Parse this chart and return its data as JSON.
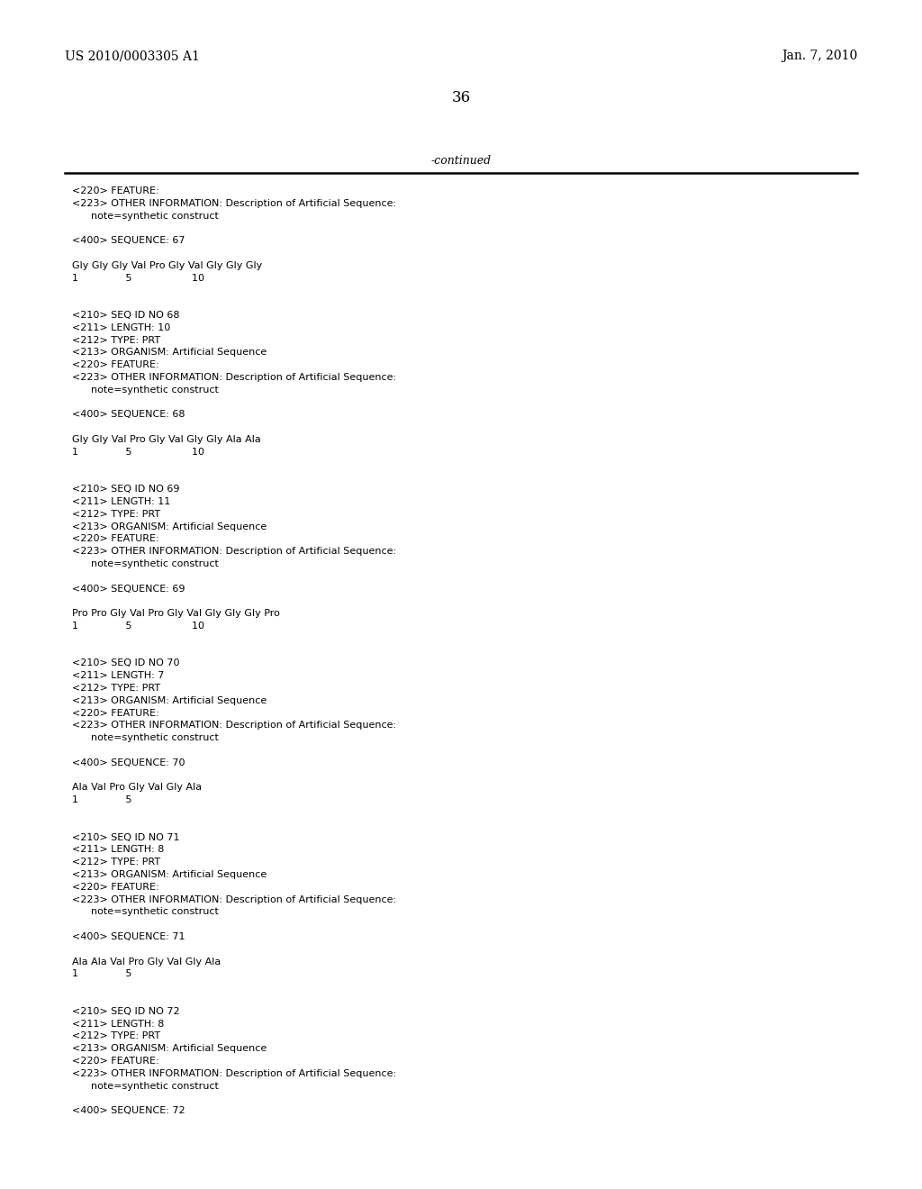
{
  "header_left": "US 2010/0003305 A1",
  "header_right": "Jan. 7, 2010",
  "page_number": "36",
  "continued_text": "-continued",
  "background_color": "#ffffff",
  "text_color": "#000000",
  "content_lines": [
    "<220> FEATURE:",
    "<223> OTHER INFORMATION: Description of Artificial Sequence:",
    "      note=synthetic construct",
    "",
    "<400> SEQUENCE: 67",
    "",
    "Gly Gly Gly Val Pro Gly Val Gly Gly Gly",
    "1               5                   10",
    "",
    "",
    "<210> SEQ ID NO 68",
    "<211> LENGTH: 10",
    "<212> TYPE: PRT",
    "<213> ORGANISM: Artificial Sequence",
    "<220> FEATURE:",
    "<223> OTHER INFORMATION: Description of Artificial Sequence:",
    "      note=synthetic construct",
    "",
    "<400> SEQUENCE: 68",
    "",
    "Gly Gly Val Pro Gly Val Gly Gly Ala Ala",
    "1               5                   10",
    "",
    "",
    "<210> SEQ ID NO 69",
    "<211> LENGTH: 11",
    "<212> TYPE: PRT",
    "<213> ORGANISM: Artificial Sequence",
    "<220> FEATURE:",
    "<223> OTHER INFORMATION: Description of Artificial Sequence:",
    "      note=synthetic construct",
    "",
    "<400> SEQUENCE: 69",
    "",
    "Pro Pro Gly Val Pro Gly Val Gly Gly Gly Pro",
    "1               5                   10",
    "",
    "",
    "<210> SEQ ID NO 70",
    "<211> LENGTH: 7",
    "<212> TYPE: PRT",
    "<213> ORGANISM: Artificial Sequence",
    "<220> FEATURE:",
    "<223> OTHER INFORMATION: Description of Artificial Sequence:",
    "      note=synthetic construct",
    "",
    "<400> SEQUENCE: 70",
    "",
    "Ala Val Pro Gly Val Gly Ala",
    "1               5",
    "",
    "",
    "<210> SEQ ID NO 71",
    "<211> LENGTH: 8",
    "<212> TYPE: PRT",
    "<213> ORGANISM: Artificial Sequence",
    "<220> FEATURE:",
    "<223> OTHER INFORMATION: Description of Artificial Sequence:",
    "      note=synthetic construct",
    "",
    "<400> SEQUENCE: 71",
    "",
    "Ala Ala Val Pro Gly Val Gly Ala",
    "1               5",
    "",
    "",
    "<210> SEQ ID NO 72",
    "<211> LENGTH: 8",
    "<212> TYPE: PRT",
    "<213> ORGANISM: Artificial Sequence",
    "<220> FEATURE:",
    "<223> OTHER INFORMATION: Description of Artificial Sequence:",
    "      note=synthetic construct",
    "",
    "<400> SEQUENCE: 72"
  ]
}
